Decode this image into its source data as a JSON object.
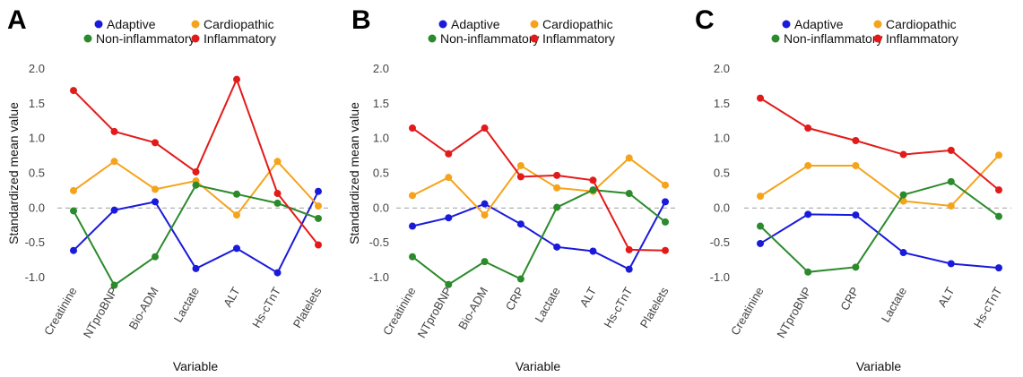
{
  "chart_data": [
    {
      "type": "line",
      "panel": "A",
      "categories": [
        "Creatinine",
        "NTproBNP",
        "Bio-ADM",
        "Lactate",
        "ALT",
        "Hs-cTnT",
        "Platelets"
      ],
      "series": [
        {
          "name": "Adaptive",
          "color": "#1a1adb",
          "values": [
            -0.61,
            -0.03,
            0.09,
            -0.87,
            -0.58,
            -0.93,
            0.24
          ]
        },
        {
          "name": "Cardiopathic",
          "color": "#f5a31a",
          "values": [
            0.25,
            0.67,
            0.27,
            0.39,
            -0.1,
            0.67,
            0.03
          ]
        },
        {
          "name": "Non-inflammatory",
          "color": "#2b8a2b",
          "values": [
            -0.04,
            -1.11,
            -0.7,
            0.33,
            0.2,
            0.07,
            -0.15
          ]
        },
        {
          "name": "Inflammatory",
          "color": "#e31a1a",
          "values": [
            1.69,
            1.1,
            0.94,
            0.52,
            1.85,
            0.21,
            -0.53
          ]
        }
      ],
      "xlabel": "Variable",
      "ylabel": "Standardized mean value",
      "ylim": [
        -1.0,
        2.0
      ],
      "yticks": [
        "2.0",
        "1.5",
        "1.0",
        "0.5",
        "0.0",
        "-0.5",
        "-1.0"
      ],
      "reference_line": 0.0,
      "grid": false
    },
    {
      "type": "line",
      "panel": "B",
      "categories": [
        "Creatinine",
        "NTproBNP",
        "Bio-ADM",
        "CRP",
        "Lactate",
        "ALT",
        "Hs-cTnT",
        "Platelets"
      ],
      "series": [
        {
          "name": "Adaptive",
          "color": "#1a1adb",
          "values": [
            -0.26,
            -0.14,
            0.06,
            -0.23,
            -0.56,
            -0.62,
            -0.88,
            0.09
          ]
        },
        {
          "name": "Cardiopathic",
          "color": "#f5a31a",
          "values": [
            0.18,
            0.44,
            -0.1,
            0.61,
            0.29,
            0.24,
            0.72,
            0.33
          ]
        },
        {
          "name": "Non-inflammatory",
          "color": "#2b8a2b",
          "values": [
            -0.7,
            -1.1,
            -0.77,
            -1.02,
            0.01,
            0.26,
            0.21,
            -0.2
          ]
        },
        {
          "name": "Inflammatory",
          "color": "#e31a1a",
          "values": [
            1.15,
            0.78,
            1.15,
            0.45,
            0.47,
            0.4,
            -0.6,
            -0.61
          ]
        }
      ],
      "xlabel": "Variable",
      "ylabel": "Standardized mean value",
      "ylim": [
        -1.0,
        2.0
      ],
      "yticks": [
        "2.0",
        "1.5",
        "1.0",
        "0.5",
        "0.0",
        "-0.5",
        "-1.0"
      ],
      "reference_line": 0.0,
      "grid": false
    },
    {
      "type": "line",
      "panel": "C",
      "categories": [
        "Creatinine",
        "NTproBNP",
        "CRP",
        "Lactate",
        "ALT",
        "Hs-cTnT"
      ],
      "series": [
        {
          "name": "Adaptive",
          "color": "#1a1adb",
          "values": [
            -0.51,
            -0.09,
            -0.1,
            -0.64,
            -0.8,
            -0.86
          ]
        },
        {
          "name": "Cardiopathic",
          "color": "#f5a31a",
          "values": [
            0.17,
            0.61,
            0.61,
            0.1,
            0.03,
            0.76
          ]
        },
        {
          "name": "Non-inflammatory",
          "color": "#2b8a2b",
          "values": [
            -0.26,
            -0.92,
            -0.85,
            0.19,
            0.38,
            -0.12
          ]
        },
        {
          "name": "Inflammatory",
          "color": "#e31a1a",
          "values": [
            1.58,
            1.15,
            0.97,
            0.77,
            0.83,
            0.26
          ]
        }
      ],
      "xlabel": "Variable",
      "ylabel": "",
      "ylim": [
        -1.0,
        2.0
      ],
      "yticks": [
        "2.0",
        "1.5",
        "1.0",
        "0.5",
        "0.0",
        "-0.5",
        "-1.0"
      ],
      "reference_line": 0.0,
      "grid": false
    }
  ]
}
